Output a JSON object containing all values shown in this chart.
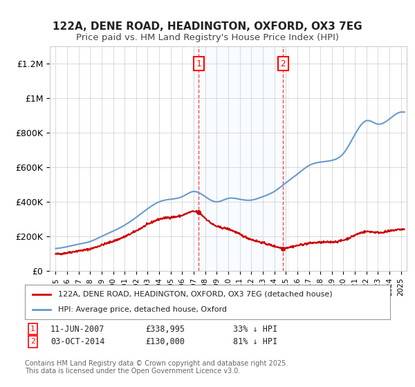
{
  "title": "122A, DENE ROAD, HEADINGTON, OXFORD, OX3 7EG",
  "subtitle": "Price paid vs. HM Land Registry's House Price Index (HPI)",
  "ylabel_ticks": [
    "£0",
    "£200K",
    "£400K",
    "£600K",
    "£800K",
    "£1M",
    "£1.2M"
  ],
  "ylim": [
    0,
    1300000
  ],
  "xlim_start": 1994.5,
  "xlim_end": 2025.5,
  "sale1_date": 2007.44,
  "sale1_label": "1",
  "sale1_price": 338995,
  "sale1_text": "11-JUN-2007    £338,995    33% ↓ HPI",
  "sale2_date": 2014.75,
  "sale2_label": "2",
  "sale2_price": 130000,
  "sale2_text": "03-OCT-2014    £130,000    81% ↓ HPI",
  "legend_label_red": "122A, DENE ROAD, HEADINGTON, OXFORD, OX3 7EG (detached house)",
  "legend_label_blue": "HPI: Average price, detached house, Oxford",
  "footer": "Contains HM Land Registry data © Crown copyright and database right 2025.\nThis data is licensed under the Open Government Licence v3.0.",
  "line_color_red": "#cc0000",
  "line_color_blue": "#6699cc",
  "shade_color": "#ddeeff",
  "grid_color": "#cccccc",
  "background_color": "#ffffff",
  "label_box_color": "#ff0000"
}
